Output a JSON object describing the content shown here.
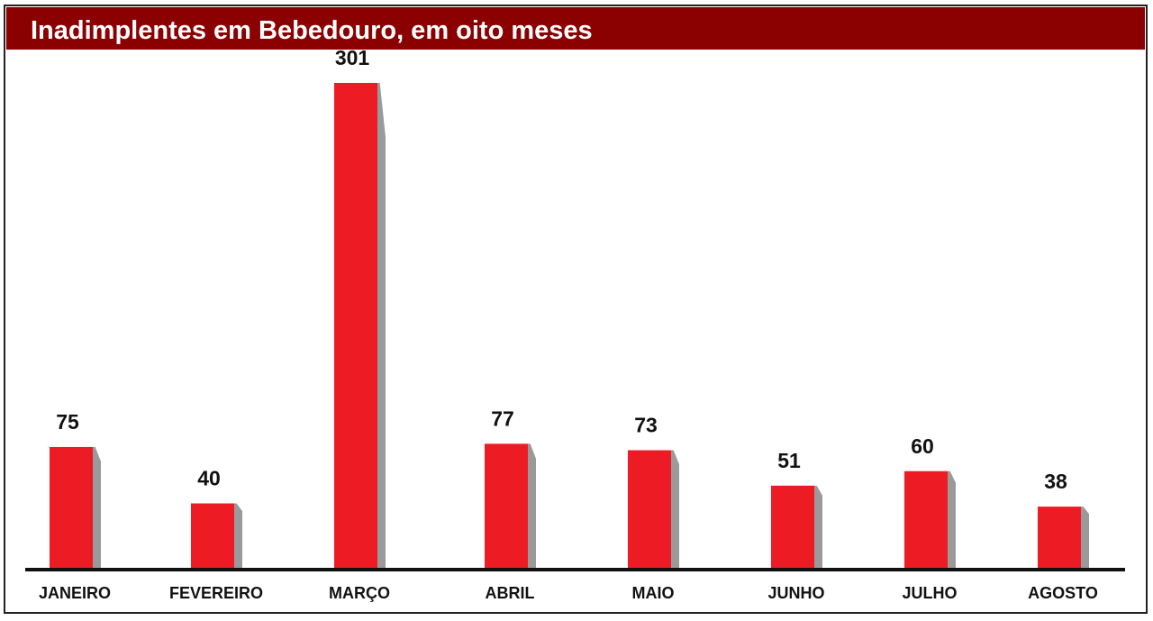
{
  "chart_data": {
    "type": "bar",
    "title": "Inadimplentes em Bebedouro, em oito meses",
    "categories": [
      "JANEIRO",
      "FEVEREIRO",
      "MARÇO",
      "ABRIL",
      "MAIO",
      "JUNHO",
      "JULHO",
      "AGOSTO"
    ],
    "values": [
      75,
      40,
      301,
      77,
      73,
      51,
      60,
      38
    ],
    "color": "#ed1c24"
  }
}
